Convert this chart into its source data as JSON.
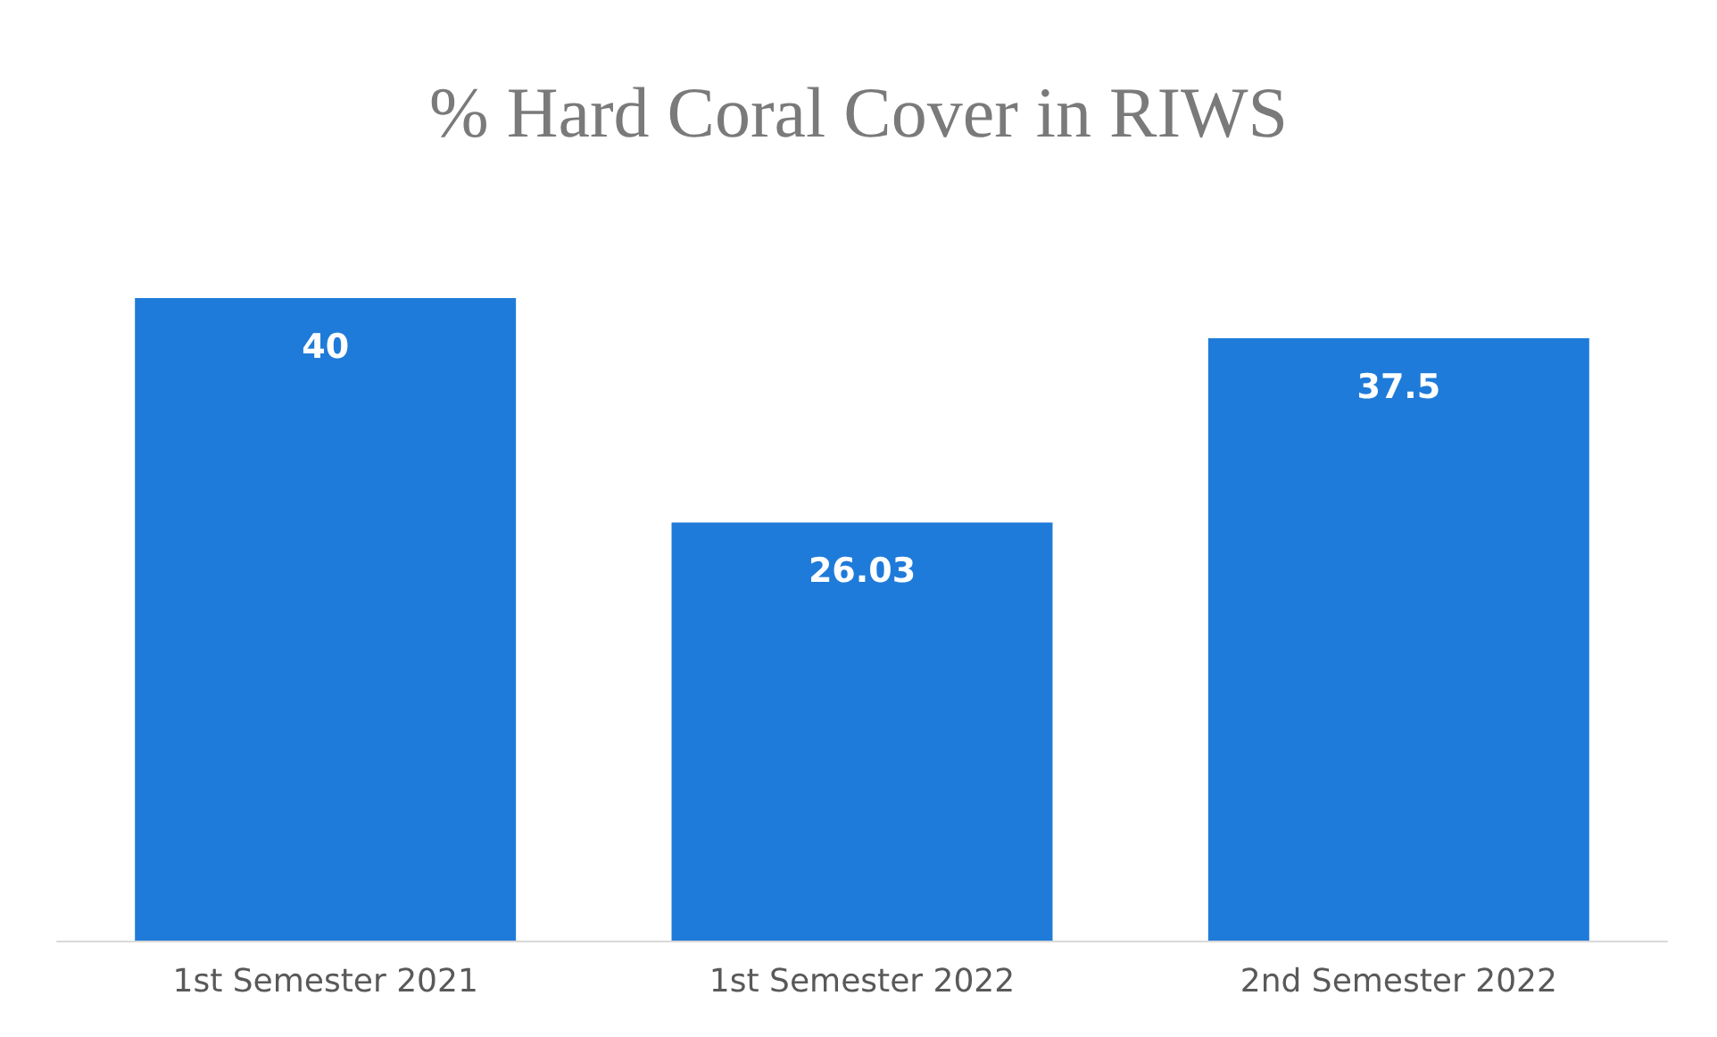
{
  "chart_data": {
    "type": "bar",
    "title": "% Hard Coral Cover in RIWS",
    "categories": [
      "1st Semester 2021",
      "1st Semester 2022",
      "2nd Semester 2022"
    ],
    "values": [
      40,
      26.03,
      37.5
    ],
    "color": "#1f7bd9",
    "data_labels": true
  }
}
